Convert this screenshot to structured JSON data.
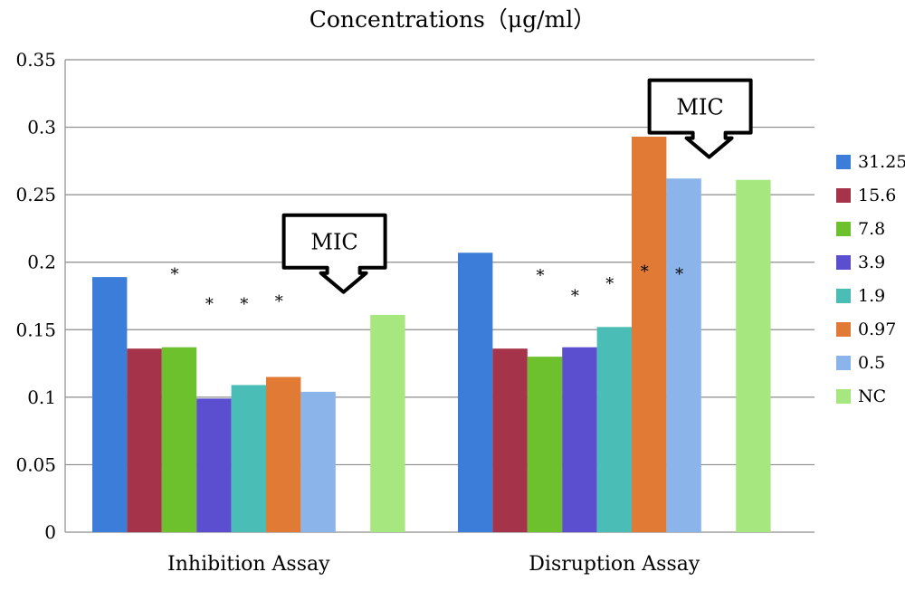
{
  "chart_data": {
    "type": "bar",
    "title": "Concentrations（μg/ml）",
    "xlabel": "",
    "ylabel": "",
    "ylim": [
      0,
      0.35
    ],
    "yticks": [
      0,
      0.05,
      0.1,
      0.15,
      0.2,
      0.25,
      0.3,
      0.35
    ],
    "ytick_labels": [
      "0",
      "0.05",
      "0.1",
      "0.15",
      "0.2",
      "0.25",
      "0.3",
      "0.35"
    ],
    "grid": true,
    "legend_position": "right",
    "categories": [
      "Inhibition Assay",
      "Disruption Assay"
    ],
    "series": [
      {
        "name": "31.25",
        "color": "#3b7dd8",
        "values": [
          0.189,
          0.207
        ]
      },
      {
        "name": "15.6",
        "color": "#a5344b",
        "values": [
          0.136,
          0.136
        ]
      },
      {
        "name": "7.8",
        "color": "#6cc12d",
        "values": [
          0.137,
          0.13
        ]
      },
      {
        "name": "3.9",
        "color": "#5b4fcf",
        "values": [
          0.099,
          0.137
        ]
      },
      {
        "name": "1.9",
        "color": "#4bbdb7",
        "values": [
          0.109,
          0.152
        ]
      },
      {
        "name": "0.97",
        "color": "#e07a35",
        "values": [
          0.115,
          0.293
        ]
      },
      {
        "name": "0.5",
        "color": "#8ab4ea",
        "values": [
          0.104,
          0.262
        ]
      },
      {
        "name": "NC",
        "color": "#a6e77f",
        "values": [
          0.161,
          0.261
        ]
      }
    ],
    "annotations": [
      {
        "text": "MIC",
        "category": "Inhibition Assay",
        "points_to_series": "0.5",
        "value": 0.2
      },
      {
        "text": "MIC",
        "category": "Disruption Assay",
        "points_to_series": "0.5",
        "value": 0.3
      }
    ],
    "significance_marker": "*",
    "significance": [
      {
        "category": "Inhibition Assay",
        "series": "7.8",
        "level": 0.195
      },
      {
        "category": "Inhibition Assay",
        "series": "3.9",
        "level": 0.173
      },
      {
        "category": "Inhibition Assay",
        "series": "1.9",
        "level": 0.173
      },
      {
        "category": "Inhibition Assay",
        "series": "0.97",
        "level": 0.175
      },
      {
        "category": "Disruption Assay",
        "series": "7.8",
        "level": 0.194
      },
      {
        "category": "Disruption Assay",
        "series": "3.9",
        "level": 0.179
      },
      {
        "category": "Disruption Assay",
        "series": "1.9",
        "level": 0.188
      },
      {
        "category": "Disruption Assay",
        "series": "0.97",
        "level": 0.197
      },
      {
        "category": "Disruption Assay",
        "series": "0.5",
        "level": 0.195
      }
    ]
  }
}
